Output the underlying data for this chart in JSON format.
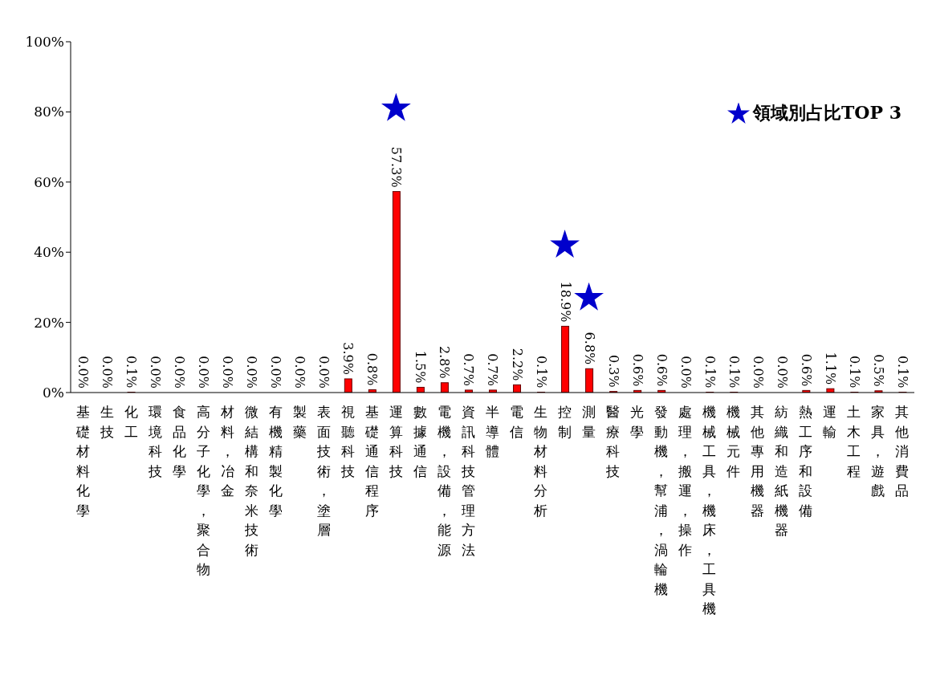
{
  "chart_data": {
    "type": "bar",
    "categories": [
      "基礎材料化學",
      "生技",
      "化工",
      "環境科技",
      "食品化學",
      "高分子化學，聚合物",
      "材料，冶金",
      "微結構和奈米技術",
      "有機精製化學",
      "製藥",
      "表面技術，塗層",
      "視聽科技",
      "基礎通信程序",
      "運算科技",
      "數據通信",
      "電機，設備，能源",
      "資訊科技管理方法",
      "半導體",
      "電信",
      "生物材料分析",
      "控制",
      "測量",
      "醫療科技",
      "光學",
      "發動機，幫浦，渦輪機",
      "處理，搬運，操作",
      "機械工具，機床，工具機",
      "機械元件",
      "其他專用機器",
      "紡織和造紙機器",
      "熱工序和設備",
      "運輸",
      "土木工程",
      "家具，遊戲",
      "其他消費品"
    ],
    "series": [
      {
        "type": "bar",
        "color": "#ff0000",
        "values": [
          0.0,
          0.0,
          0.1,
          0.0,
          0.0,
          0.0,
          0.0,
          0.0,
          0.0,
          0.0,
          0.0,
          3.9,
          0.8,
          57.3,
          1.5,
          2.8,
          0.7,
          0.7,
          2.2,
          0.1,
          18.9,
          6.8,
          0.3,
          0.6,
          0.6,
          0.0,
          0.1,
          0.1,
          0.0,
          0.0,
          0.6,
          1.1,
          0.1,
          0.5,
          0.1
        ],
        "value_labels": [
          "0.0%",
          "0.0%",
          "0.1%",
          "0.0%",
          "0.0%",
          "0.0%",
          "0.0%",
          "0.0%",
          "0.0%",
          "0.0%",
          "0.0%",
          "3.9%",
          "0.8%",
          "57.3%",
          "1.5%",
          "2.8%",
          "0.7%",
          "0.7%",
          "2.2%",
          "0.1%",
          "18.9%",
          "6.8%",
          "0.3%",
          "0.6%",
          "0.6%",
          "0.0%",
          "0.1%",
          "0.1%",
          "0.0%",
          "0.0%",
          "0.6%",
          "1.1%",
          "0.1%",
          "0.5%",
          "0.1%"
        ]
      },
      {
        "type": "scatter",
        "name": "領域別占比TOP 3",
        "color": "#0000cc",
        "marker": "star",
        "values": [
          null,
          null,
          null,
          null,
          null,
          null,
          null,
          null,
          null,
          null,
          null,
          null,
          null,
          81,
          null,
          null,
          null,
          null,
          null,
          null,
          42,
          27,
          null,
          null,
          null,
          null,
          null,
          null,
          null,
          null,
          null,
          null,
          null,
          null,
          null
        ]
      }
    ],
    "ylim": [
      0,
      100
    ],
    "yticks": [
      {
        "value": 0,
        "label": "0%"
      },
      {
        "value": 20,
        "label": "20%"
      },
      {
        "value": 40,
        "label": "40%"
      },
      {
        "value": 60,
        "label": "60%"
      },
      {
        "value": 80,
        "label": "80%"
      },
      {
        "value": 100,
        "label": "100%"
      }
    ],
    "grid": false,
    "legend": "top right"
  }
}
